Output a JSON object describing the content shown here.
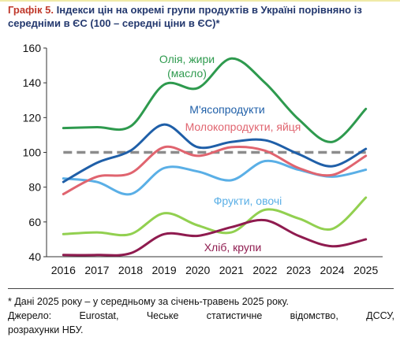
{
  "header": {
    "label": "Графік 5.",
    "title": "Індекси цін на окремі групи продуктів в Україні порівняно із середніми в ЄС (100 – середні ціни в ЄС)*"
  },
  "chart_data": {
    "type": "line",
    "title": "Індекси цін на окремі групи продуктів в Україні порівняно із середніми в ЄС (100 – середні ціни в ЄС)*",
    "x": [
      "2016",
      "2017",
      "2018",
      "2019",
      "2020",
      "2021",
      "2022",
      "2023",
      "2024",
      "2025"
    ],
    "ylim": [
      40,
      160
    ],
    "yticks": [
      40,
      60,
      80,
      100,
      120,
      140,
      160
    ],
    "grid": false,
    "reference_line": {
      "value": 100,
      "color": "#8c8c8c",
      "style": "dashed"
    },
    "series": [
      {
        "name": "Олія, жири (масло)",
        "label_lines": [
          "Олія, жири",
          "(масло)"
        ],
        "color": "#2e9a4e",
        "values": [
          114,
          114.5,
          115,
          139,
          137,
          154,
          140,
          119,
          106,
          125
        ]
      },
      {
        "name": "М'ясопродукти",
        "label_lines": [
          "М'ясопродукти"
        ],
        "color": "#1f5fa8",
        "values": [
          83,
          94,
          101,
          116,
          103,
          106,
          107,
          99,
          92,
          102
        ]
      },
      {
        "name": "Молокопродукти, яйця",
        "label_lines": [
          "Молокопродукти, яйця"
        ],
        "color": "#e0646f",
        "values": [
          76,
          86,
          88,
          103,
          98,
          103,
          101,
          91,
          87,
          98
        ]
      },
      {
        "name": "Фрукти, овочі",
        "label_lines": [
          "Фрукти, овочі"
        ],
        "color": "#5aafe6",
        "values": [
          85,
          83,
          76,
          91,
          89,
          84,
          95,
          90,
          86,
          90
        ]
      },
      {
        "name": "Хліб, крупи",
        "label_lines": [
          "Хліб, крупи"
        ],
        "color": "#8f1b4f",
        "values": [
          41,
          41,
          42,
          53,
          52,
          57,
          61,
          52,
          46,
          50
        ]
      },
      {
        "name": "",
        "label_lines": [],
        "color": "#92d050",
        "values": [
          53,
          54,
          53,
          65,
          58,
          54,
          67,
          62,
          56,
          74
        ]
      }
    ]
  },
  "footnote": {
    "line1": "* Дані 2025 року – у середньому за січень-травень 2025 року.",
    "line2_words": [
      "Джерело:",
      "Eurostat,",
      "Чеське",
      "статистичне",
      "відомство,",
      "ДССУ,"
    ],
    "line3": "розрахунки НБУ."
  }
}
